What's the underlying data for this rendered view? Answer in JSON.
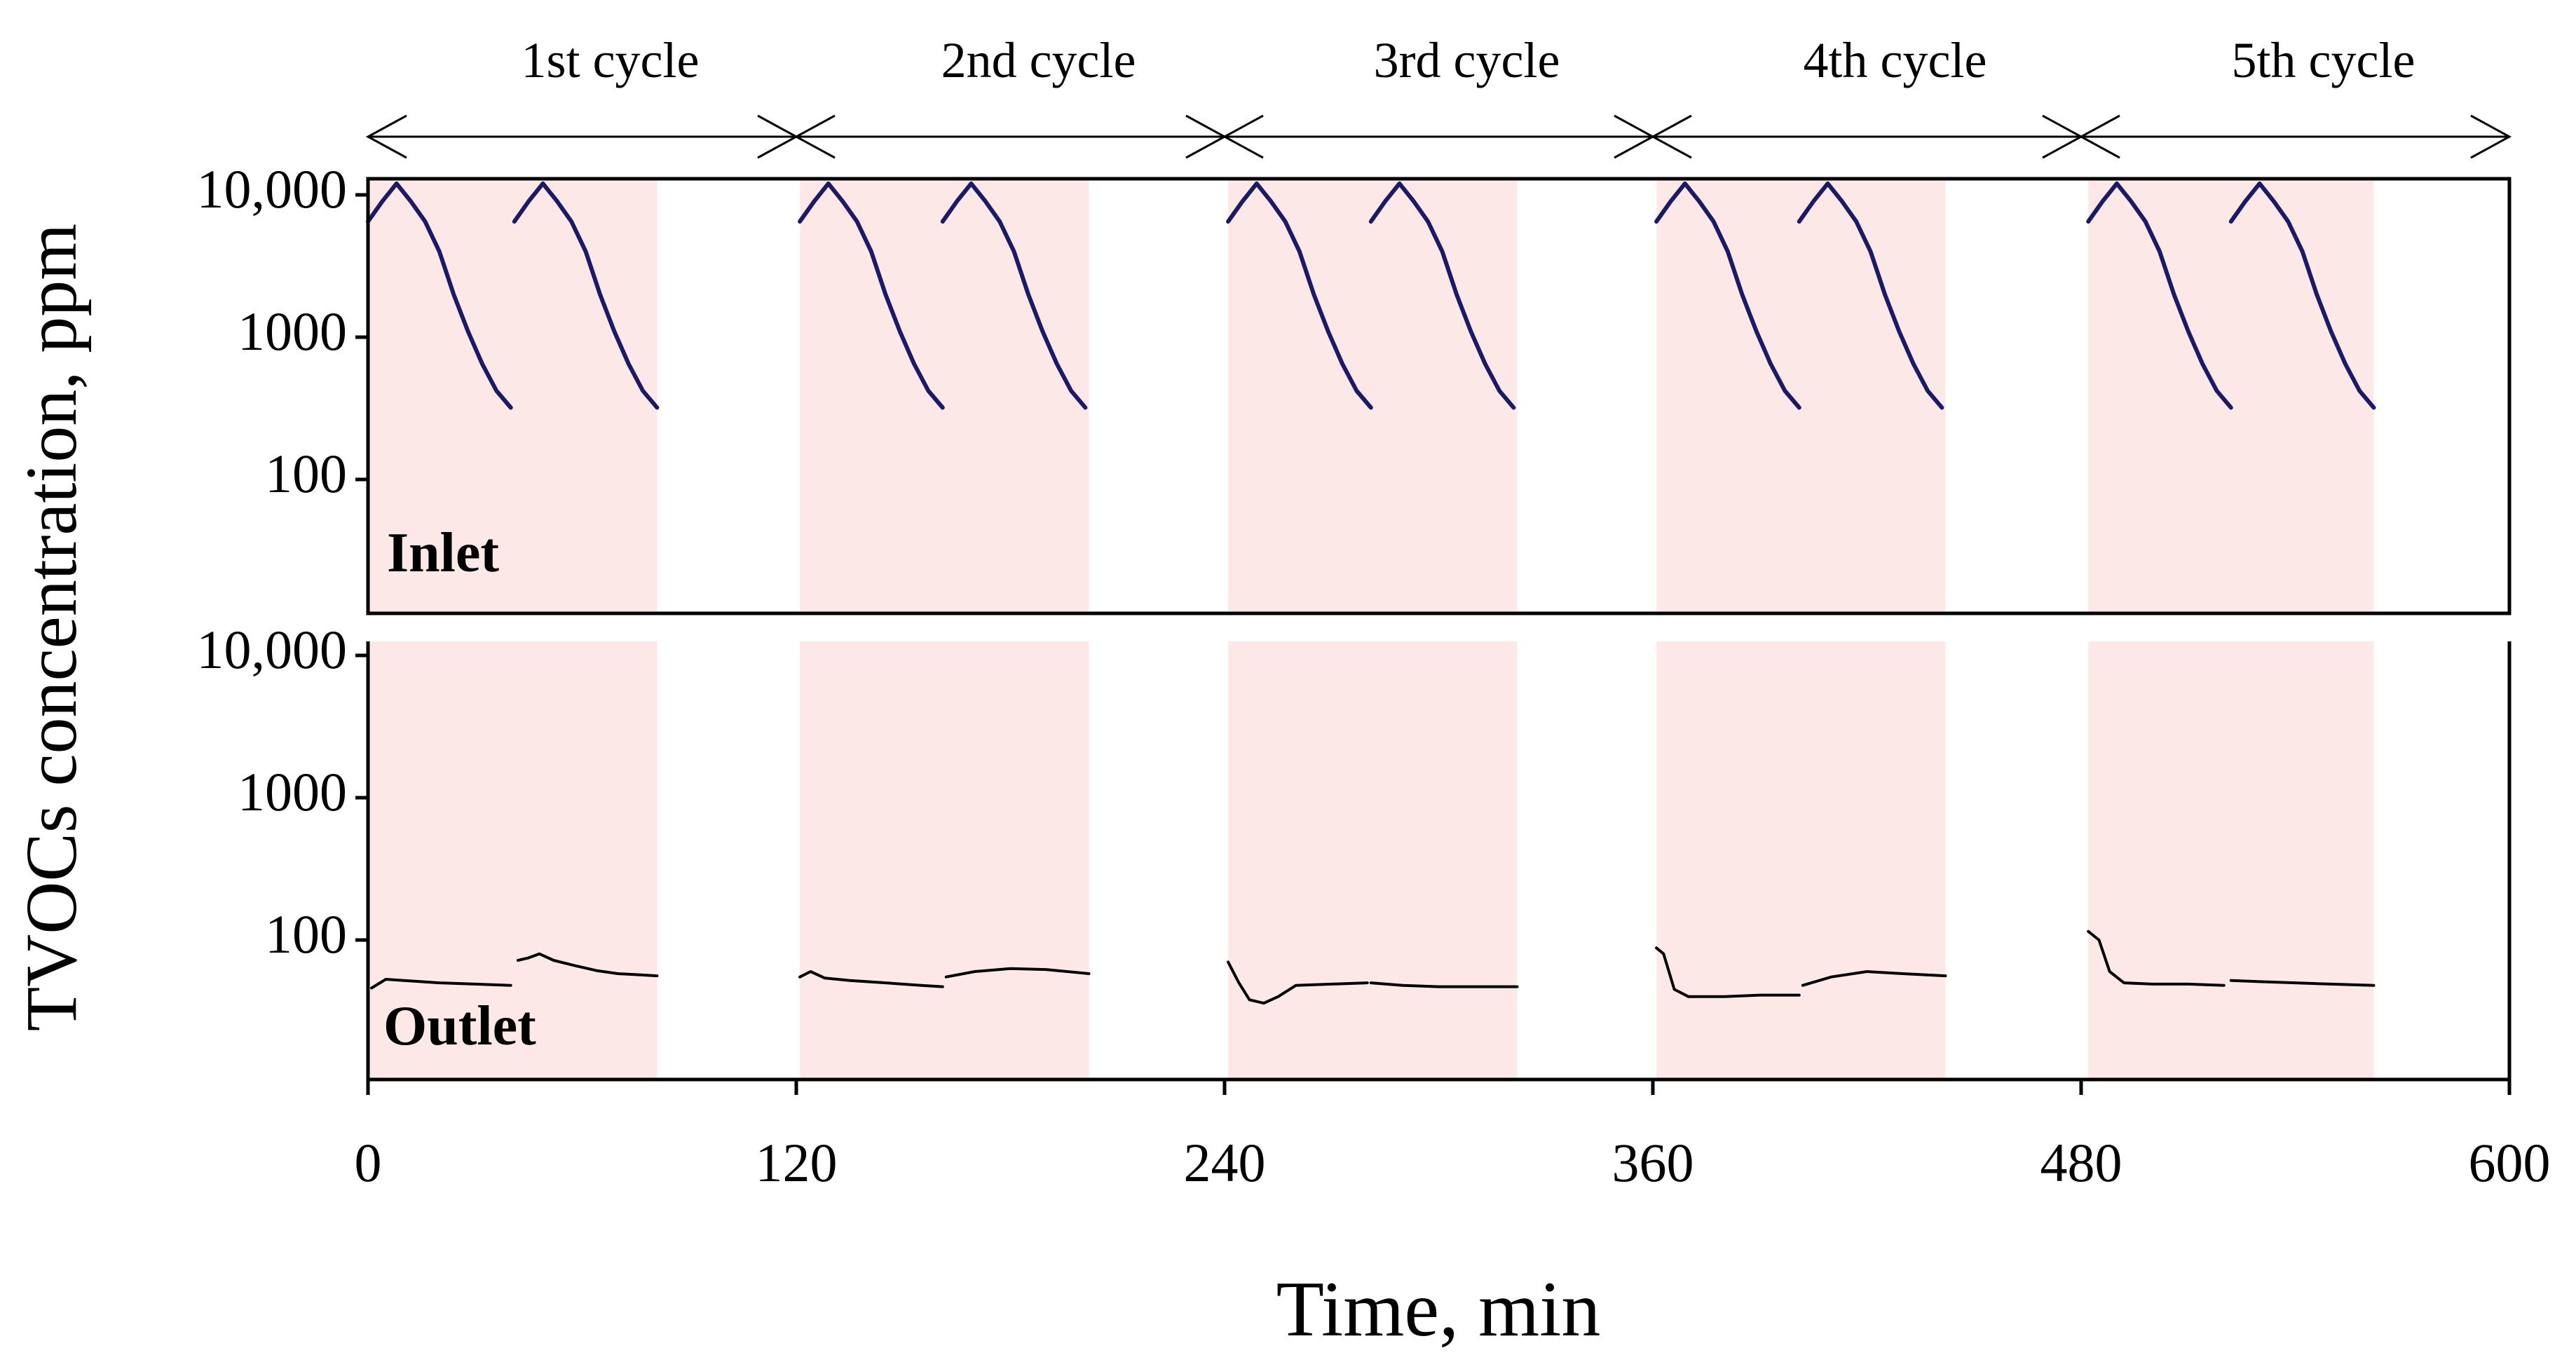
{
  "chart_data": {
    "type": "line",
    "xlabel": "Time, min",
    "ylabel": "TVOCs concentration, ppm",
    "x_ticks": [
      "0",
      "120",
      "240",
      "360",
      "480",
      "600"
    ],
    "xlim": [
      0,
      600
    ],
    "y_scale": "log",
    "ylim": [
      10,
      10000
    ],
    "y_ticks": [
      "10,000",
      "1000",
      "100"
    ],
    "y_tick_values": [
      10000,
      1000,
      100
    ],
    "grid": false,
    "colors": {
      "inlet": "#1a1a66",
      "outlet": "#000000",
      "adsorption_band": "#fde8e8",
      "axis": "#000000"
    },
    "cycles": [
      {
        "label": "1st cycle",
        "start": 0,
        "end": 120
      },
      {
        "label": "2nd cycle",
        "start": 120,
        "end": 240
      },
      {
        "label": "3rd cycle",
        "start": 240,
        "end": 360
      },
      {
        "label": "4th cycle",
        "start": 360,
        "end": 480
      },
      {
        "label": "5th cycle",
        "start": 480,
        "end": 600
      }
    ],
    "adsorption_periods": [
      [
        0,
        81
      ],
      [
        121,
        202
      ],
      [
        241,
        322
      ],
      [
        361,
        442
      ],
      [
        482,
        562
      ]
    ],
    "panels": [
      {
        "label": "Inlet",
        "series": [
          {
            "x": [
              0,
              4,
              8,
              12,
              16,
              20,
              24,
              28,
              32,
              36,
              40
            ],
            "y": [
              6500,
              9000,
              12000,
              9000,
              6500,
              4000,
              2000,
              1100,
              650,
              420,
              320
            ]
          },
          {
            "x": [
              41,
              45,
              49,
              53,
              57,
              61,
              65,
              69,
              73,
              77,
              81
            ],
            "y": [
              6500,
              9000,
              12000,
              9000,
              6500,
              4000,
              2000,
              1100,
              650,
              420,
              320
            ]
          },
          {
            "x": [
              121,
              125,
              129,
              133,
              137,
              141,
              145,
              149,
              153,
              157,
              161
            ],
            "y": [
              6500,
              9000,
              12000,
              9000,
              6500,
              4000,
              2000,
              1100,
              650,
              420,
              320
            ]
          },
          {
            "x": [
              161,
              165,
              169,
              173,
              177,
              181,
              185,
              189,
              193,
              197,
              201
            ],
            "y": [
              6500,
              9000,
              12000,
              9000,
              6500,
              4000,
              2000,
              1100,
              650,
              420,
              320
            ]
          },
          {
            "x": [
              241,
              245,
              249,
              253,
              257,
              261,
              265,
              269,
              273,
              277,
              281
            ],
            "y": [
              6500,
              9000,
              12000,
              9000,
              6500,
              4000,
              2000,
              1100,
              650,
              420,
              320
            ]
          },
          {
            "x": [
              281,
              285,
              289,
              293,
              297,
              301,
              305,
              309,
              313,
              317,
              321
            ],
            "y": [
              6500,
              9000,
              12000,
              9000,
              6500,
              4000,
              2000,
              1100,
              650,
              420,
              320
            ]
          },
          {
            "x": [
              361,
              365,
              369,
              373,
              377,
              381,
              385,
              389,
              393,
              397,
              401
            ],
            "y": [
              6500,
              9000,
              12000,
              9000,
              6500,
              4000,
              2000,
              1100,
              650,
              420,
              320
            ]
          },
          {
            "x": [
              401,
              405,
              409,
              413,
              417,
              421,
              425,
              429,
              433,
              437,
              441
            ],
            "y": [
              6500,
              9000,
              12000,
              9000,
              6500,
              4000,
              2000,
              1100,
              650,
              420,
              320
            ]
          },
          {
            "x": [
              482,
              486,
              490,
              494,
              498,
              502,
              506,
              510,
              514,
              518,
              522
            ],
            "y": [
              6500,
              9000,
              12000,
              9000,
              6500,
              4000,
              2000,
              1100,
              650,
              420,
              320
            ]
          },
          {
            "x": [
              522,
              526,
              530,
              534,
              538,
              542,
              546,
              550,
              554,
              558,
              562
            ],
            "y": [
              6500,
              9000,
              12000,
              9000,
              6500,
              4000,
              2000,
              1100,
              650,
              420,
              320
            ]
          }
        ]
      },
      {
        "label": "Outlet",
        "series": [
          {
            "x": [
              1,
              5,
              10,
              20,
              30,
              40
            ],
            "y": [
              46,
              53,
              52,
              50,
              49,
              48
            ]
          },
          {
            "x": [
              42,
              45,
              48,
              52,
              58,
              64,
              70,
              76,
              81
            ],
            "y": [
              72,
              75,
              80,
              72,
              66,
              61,
              58,
              57,
              56
            ]
          },
          {
            "x": [
              121,
              124,
              128,
              135,
              145,
              155,
              161
            ],
            "y": [
              55,
              60,
              54,
              52,
              50,
              48,
              47
            ]
          },
          {
            "x": [
              162,
              170,
              180,
              190,
              202
            ],
            "y": [
              55,
              60,
              63,
              62,
              58
            ]
          },
          {
            "x": [
              241,
              244,
              247,
              251,
              255,
              260,
              270,
              280
            ],
            "y": [
              70,
              50,
              38,
              36,
              40,
              48,
              49,
              50
            ]
          },
          {
            "x": [
              281,
              290,
              300,
              310,
              322
            ],
            "y": [
              50,
              48,
              47,
              47,
              47
            ]
          },
          {
            "x": [
              361,
              363,
              366,
              370,
              380,
              390,
              401
            ],
            "y": [
              88,
              80,
              45,
              40,
              40,
              41,
              41
            ]
          },
          {
            "x": [
              402,
              410,
              420,
              430,
              442
            ],
            "y": [
              48,
              55,
              60,
              58,
              56
            ]
          },
          {
            "x": [
              482,
              485,
              488,
              492,
              500,
              510,
              520
            ],
            "y": [
              115,
              100,
              60,
              50,
              49,
              49,
              48
            ]
          },
          {
            "x": [
              522,
              530,
              540,
              550,
              562
            ],
            "y": [
              52,
              51,
              50,
              49,
              48
            ]
          }
        ]
      }
    ]
  }
}
